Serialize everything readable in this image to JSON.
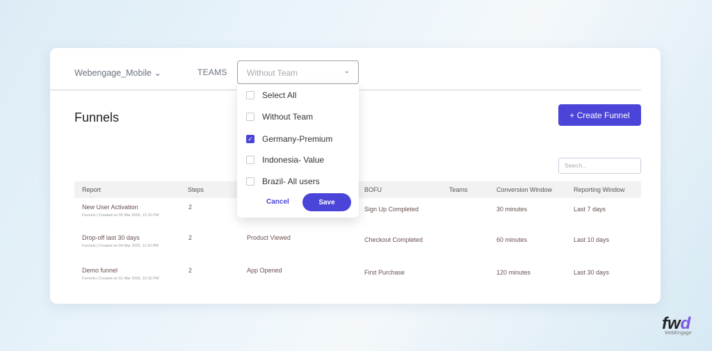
{
  "header": {
    "app_name": "Webengage_Mobile",
    "teams_label": "TEAMS",
    "teams_select_value": "Without Team"
  },
  "page": {
    "title": "Funnels",
    "create_label": "+ Create Funnel",
    "search_placeholder": "Search..."
  },
  "table": {
    "columns": {
      "report": "Report",
      "steps": "Steps",
      "bofu": "BOFU",
      "teams": "Teams",
      "conversion": "Conversion Window",
      "reporting": "Reporting Window"
    },
    "rows": [
      {
        "name": "New User Activation",
        "sub": "Funnels | Created on 09 Mar 2026, 12:10 PM",
        "steps": "2",
        "tofu": "",
        "bofu": "Sign Up Completed",
        "teams": "",
        "conversion": "30 minutes",
        "reporting": "Last 7 days"
      },
      {
        "name": "Drop-off last 30 days",
        "sub": "Funnels | Created on 04 Mar 2026, 11:10 PM",
        "steps": "2",
        "tofu": "Product Viewed",
        "bofu": "Checkout Completed",
        "teams": "",
        "conversion": "60 minutes",
        "reporting": "Last 10 days"
      },
      {
        "name": "Demo funnel",
        "sub": "Funnels | Created on 01 Mar 2026, 10:10 PM",
        "steps": "2",
        "tofu": "App Opened",
        "bofu": "First Purchase",
        "teams": "",
        "conversion": "120 minutes",
        "reporting": "Last 30 days"
      }
    ]
  },
  "dropdown": {
    "options": [
      {
        "label": "Select All",
        "checked": false
      },
      {
        "label": "Without Team",
        "checked": false
      },
      {
        "label": "Germany-Premium",
        "checked": true
      },
      {
        "label": "Indonesia- Value",
        "checked": false
      },
      {
        "label": "Brazil- All users",
        "checked": false
      }
    ],
    "cancel_label": "Cancel",
    "save_label": "Save"
  },
  "logo": {
    "text": "fwd",
    "sub": "WebEngage"
  },
  "colors": {
    "accent": "#4a44d8"
  }
}
